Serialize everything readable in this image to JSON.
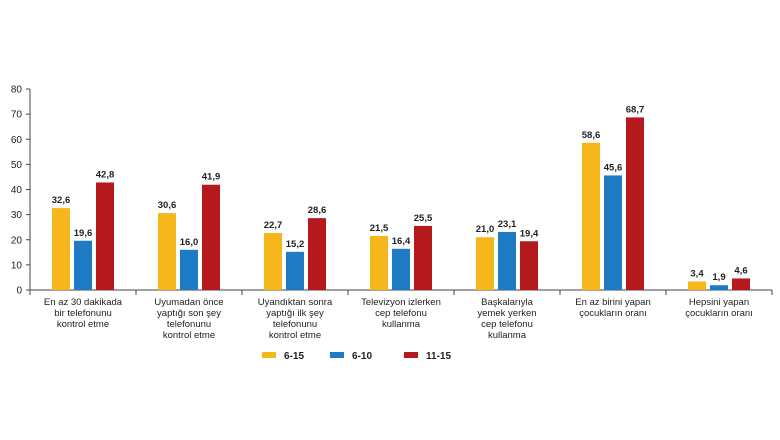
{
  "chart_data": {
    "type": "bar",
    "ylim": [
      0,
      80
    ],
    "yticks": [
      "0",
      "10",
      "20",
      "30",
      "40",
      "50",
      "60",
      "70",
      "80"
    ],
    "categories": [
      [
        "En az 30 dakikada",
        "bir telefonunu",
        "kontrol etme"
      ],
      [
        "Uyumadan önce",
        "yaptığı son şey",
        "telefonunu",
        "kontrol etme"
      ],
      [
        "Uyandıktan sonra",
        "yaptığı ilk şey",
        "telefonunu",
        "kontrol etme"
      ],
      [
        "Televizyon izlerken",
        "cep telefonu",
        "kullanma"
      ],
      [
        "Başkalarıyla",
        "yemek yerken",
        "cep telefonu",
        "kullanma"
      ],
      [
        "En az birini yapan",
        "çocukların oranı"
      ],
      [
        "Hepsini yapan",
        "çocukların oranı"
      ]
    ],
    "series": [
      {
        "name": "6-15",
        "color": "#F5B71B",
        "values": [
          32.6,
          30.6,
          22.7,
          21.5,
          21.0,
          58.6,
          3.4
        ],
        "labels": [
          "32,6",
          "30,6",
          "22,7",
          "21,5",
          "21,0",
          "58,6",
          "3,4"
        ]
      },
      {
        "name": "6-10",
        "color": "#1E7BC4",
        "values": [
          19.6,
          16.0,
          15.2,
          16.4,
          23.1,
          45.6,
          1.9
        ],
        "labels": [
          "19,6",
          "16,0",
          "15,2",
          "16,4",
          "23,1",
          "45,6",
          "1,9"
        ]
      },
      {
        "name": "11-15",
        "color": "#B5191E",
        "values": [
          42.8,
          41.9,
          28.6,
          25.5,
          19.4,
          68.7,
          4.6
        ],
        "labels": [
          "42,8",
          "41,9",
          "28,6",
          "25,5",
          "19,4",
          "68,7",
          "4,6"
        ]
      }
    ],
    "legend_position": "bottom-center",
    "grid": false
  }
}
